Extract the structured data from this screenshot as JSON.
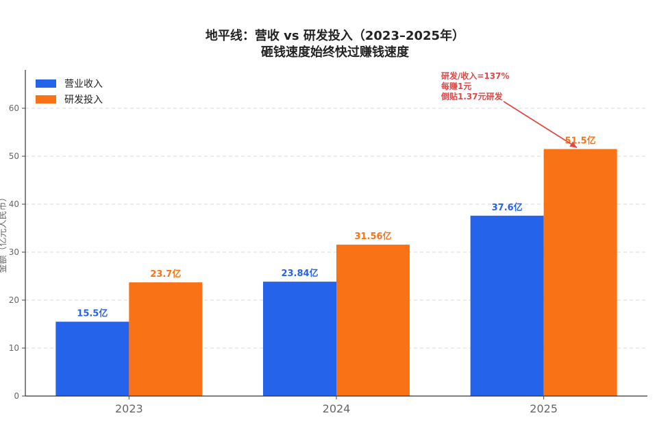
{
  "chart_data": {
    "type": "bar",
    "title": "地平线：营收 vs 研发投入（2023–2025年）",
    "subtitle": "砸钱速度始终快过赚钱速度",
    "xlabel": "",
    "ylabel": "金额（亿元人民币）",
    "categories": [
      "2023",
      "2024",
      "2025"
    ],
    "series": [
      {
        "name": "营业收入",
        "values": [
          15.5,
          23.84,
          37.6
        ],
        "labels": [
          "15.5亿",
          "23.84亿",
          "37.6亿"
        ],
        "color": "#2563eb"
      },
      {
        "name": "研发投入",
        "values": [
          23.7,
          31.56,
          51.5
        ],
        "labels": [
          "23.7亿",
          "31.56亿",
          "51.5亿"
        ],
        "color": "#f97316"
      }
    ],
    "ylim": [
      0,
      68
    ],
    "yticks": [
      0,
      10,
      20,
      30,
      40,
      50,
      60
    ],
    "grid": true,
    "legend": "top-left",
    "annotation": {
      "lines": [
        "研发/收入=137%",
        "每赚1元",
        "倒贴1.37元研发"
      ],
      "target_category": "2025",
      "target_series": 1,
      "color": "#e04848"
    }
  }
}
